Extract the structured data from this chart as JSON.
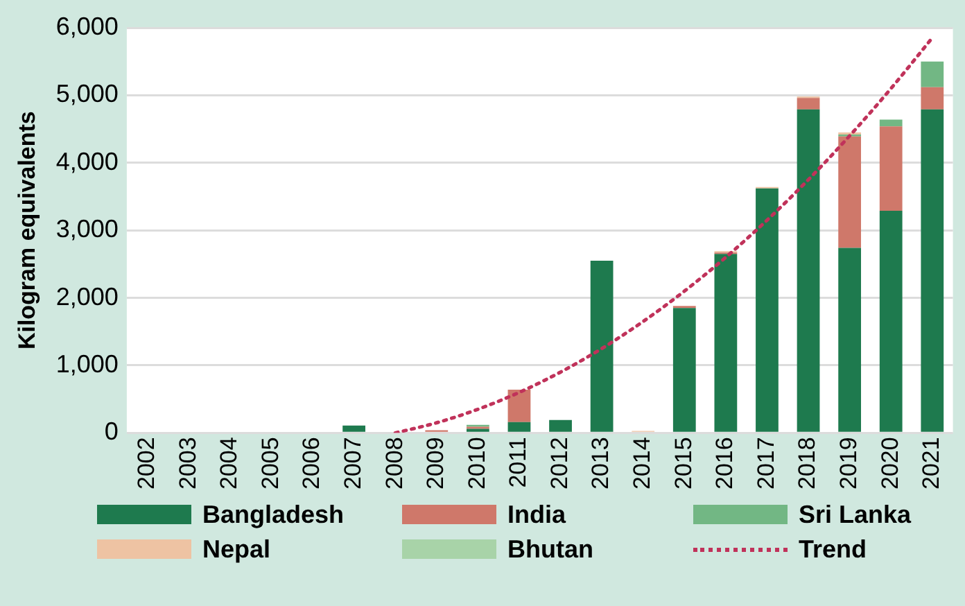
{
  "chart_data": {
    "type": "bar",
    "stacked": true,
    "ylabel": "Kilogram equivalents",
    "categories": [
      "2002",
      "2003",
      "2004",
      "2005",
      "2006",
      "2007",
      "2008",
      "2009",
      "2010",
      "2011",
      "2012",
      "2013",
      "2014",
      "2015",
      "2016",
      "2017",
      "2018",
      "2019",
      "2020",
      "2021"
    ],
    "series": [
      {
        "name": "Bangladesh",
        "color": "#1e7a4e",
        "values": [
          0,
          0,
          0,
          0,
          0,
          110,
          0,
          0,
          60,
          160,
          190,
          2550,
          0,
          1850,
          2650,
          3620,
          4790,
          2740,
          3290,
          4790
        ]
      },
      {
        "name": "India",
        "color": "#cf786a",
        "values": [
          0,
          0,
          0,
          0,
          0,
          0,
          0,
          40,
          30,
          480,
          0,
          0,
          0,
          30,
          20,
          0,
          170,
          1650,
          1250,
          330
        ]
      },
      {
        "name": "Sri Lanka",
        "color": "#72b784",
        "values": [
          0,
          0,
          0,
          0,
          0,
          0,
          0,
          0,
          30,
          0,
          0,
          0,
          0,
          0,
          0,
          0,
          0,
          30,
          100,
          380
        ]
      },
      {
        "name": "Nepal",
        "color": "#eec3a3",
        "values": [
          0,
          0,
          0,
          0,
          0,
          0,
          0,
          0,
          0,
          0,
          0,
          0,
          30,
          0,
          20,
          20,
          20,
          30,
          0,
          0
        ]
      },
      {
        "name": "Bhutan",
        "color": "#a8d3a8",
        "values": [
          0,
          0,
          0,
          0,
          0,
          0,
          0,
          0,
          0,
          0,
          0,
          0,
          0,
          0,
          0,
          0,
          0,
          0,
          0,
          0
        ]
      },
      {
        "name": "Trend",
        "type": "line",
        "color": "#c0325a",
        "line_style": "dotted",
        "marker": "none",
        "values": [
          null,
          null,
          null,
          null,
          null,
          null,
          0,
          150,
          350,
          600,
          900,
          1250,
          1650,
          2100,
          2600,
          3150,
          3750,
          4400,
          5100,
          5850
        ]
      }
    ],
    "ylim": [
      0,
      6000
    ],
    "yticks": [
      0,
      {
        "value": 1000,
        "label": "1,000"
      },
      {
        "value": 2000,
        "label": "2,000"
      },
      {
        "value": 3000,
        "label": "3,000"
      },
      {
        "value": 4000,
        "label": "4,000"
      },
      {
        "value": 5000,
        "label": "5,000"
      },
      {
        "value": 6000,
        "label": "6,000"
      }
    ],
    "grid": "y",
    "legend": "bottom"
  }
}
